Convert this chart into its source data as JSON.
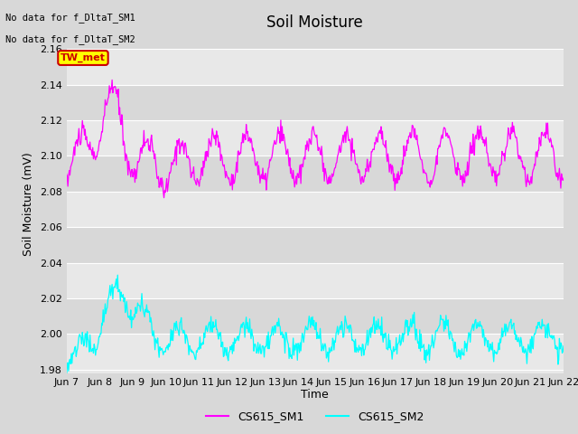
{
  "title": "Soil Moisture",
  "xlabel": "Time",
  "ylabel": "Soil Moisture (mV)",
  "ylim": [
    1.978,
    2.168
  ],
  "yticks": [
    1.98,
    2.0,
    2.02,
    2.04,
    2.06,
    2.08,
    2.1,
    2.12,
    2.14,
    2.16
  ],
  "xlim_start": 0,
  "xlim_end": 15,
  "xtick_labels": [
    "Jun 7",
    "Jun 8",
    "Jun 9",
    "Jun 10",
    "Jun 11",
    "Jun 12",
    "Jun 13",
    "Jun 14",
    "Jun 15",
    "Jun 16",
    "Jun 17",
    "Jun 18",
    "Jun 19",
    "Jun 20",
    "Jun 21",
    "Jun 22"
  ],
  "annotation_text1": "No data for f_DltaT_SM1",
  "annotation_text2": "No data for f_DltaT_SM2",
  "legend_box_label": "TW_met",
  "legend_box_color": "#ffff00",
  "legend_box_border": "#cc0000",
  "sm1_color": "#ff00ff",
  "sm2_color": "#00ffff",
  "sm1_label": "CS615_SM1",
  "sm2_label": "CS615_SM2",
  "background_color": "#d8d8d8",
  "plot_bg_color_light": "#e8e8e8",
  "plot_bg_color_dark": "#d8d8d8",
  "grid_color": "#c8c8c8",
  "title_fontsize": 12,
  "axis_fontsize": 9,
  "tick_fontsize": 8
}
